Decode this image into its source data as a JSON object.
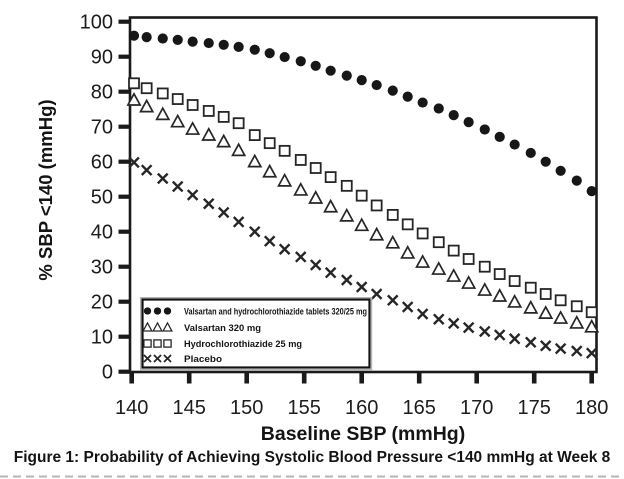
{
  "figure": {
    "caption": "Figure 1: Probability of Achieving Systolic Blood Pressure <140 mmHg at Week 8"
  },
  "chart_data": {
    "type": "scatter",
    "title": "",
    "xlabel": "Baseline SBP (mmHg)",
    "ylabel": "% SBP <140 (mmHg)",
    "xlim": [
      140,
      180.5
    ],
    "ylim": [
      0,
      101.5
    ],
    "x_ticks": [
      140,
      145,
      150,
      155,
      160,
      165,
      170,
      175,
      180
    ],
    "y_ticks": [
      0,
      10,
      20,
      30,
      40,
      50,
      60,
      70,
      80,
      90,
      100
    ],
    "grid": false,
    "legend_position": "lower-left",
    "marker_color": "#1a1a1a",
    "x": [
      140.2,
      141.3,
      142.7,
      144,
      145.3,
      146.7,
      148,
      149.3,
      150.7,
      152,
      153.3,
      154.7,
      156,
      157.3,
      158.7,
      160,
      161.3,
      162.7,
      164,
      165.3,
      166.7,
      168,
      169.3,
      170.7,
      172,
      173.3,
      174.7,
      176,
      177.3,
      178.7,
      180
    ],
    "series": [
      {
        "name": "Valsartan and hydrochlorothiazide tablets 320/25 mg",
        "marker": "filled-circle",
        "values": [
          96,
          95.6,
          95.2,
          94.8,
          94.3,
          93.9,
          93.4,
          92.8,
          92,
          91,
          89.9,
          88.7,
          87.4,
          86,
          84.6,
          83.3,
          81.9,
          80.3,
          78.6,
          76.9,
          75.2,
          73.3,
          71.3,
          69.2,
          67.1,
          64.9,
          62.5,
          60,
          57.4,
          54.6,
          51.6
        ]
      },
      {
        "name": "Valsartan 320 mg",
        "marker": "open-triangle",
        "values": [
          77.6,
          75.7,
          73.5,
          71.4,
          69.3,
          67.6,
          65.7,
          63.2,
          60,
          57.1,
          54.5,
          51.9,
          49.6,
          47.1,
          44.5,
          41.8,
          39.1,
          36.8,
          33.9,
          31.3,
          29.3,
          27.3,
          25.3,
          23.3,
          21.6,
          19.9,
          18.2,
          16.7,
          15.3,
          13.9,
          12.8
        ]
      },
      {
        "name": "Hydrochlorothiazide 25 mg",
        "marker": "open-square",
        "values": [
          82.4,
          81,
          79.5,
          77.9,
          76.2,
          74.5,
          72.8,
          71,
          67.6,
          65.3,
          63.1,
          60.5,
          58.2,
          55.6,
          53.1,
          50.3,
          47.5,
          44.8,
          42.1,
          39.5,
          37,
          34.6,
          32.2,
          30,
          27.9,
          25.9,
          24,
          22.2,
          20.4,
          18.7,
          17
        ]
      },
      {
        "name": "Placebo",
        "marker": "x-cross",
        "values": [
          59.8,
          57.6,
          55.2,
          52.9,
          50.5,
          48,
          45.5,
          42.8,
          40,
          37.3,
          35,
          32.8,
          30.5,
          28.3,
          26.2,
          24.2,
          22.2,
          20.4,
          18.5,
          16.5,
          15,
          13.8,
          12.6,
          11.5,
          10.5,
          9.4,
          8.4,
          7.4,
          6.6,
          5.9,
          5.3
        ]
      }
    ]
  }
}
